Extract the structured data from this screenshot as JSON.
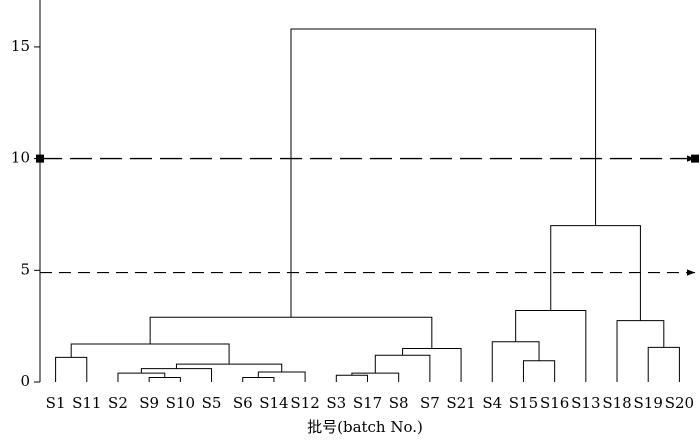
{
  "chart_data": {
    "type": "dendrogram",
    "x_label": "批号(batch No.)",
    "categories": [
      "S1",
      "S11",
      "S2",
      "S9",
      "S10",
      "S5",
      "S6",
      "S14",
      "S12",
      "S3",
      "S17",
      "S8",
      "S7",
      "S21",
      "S4",
      "S15",
      "S16",
      "S13",
      "S18",
      "S19",
      "S20"
    ],
    "merges": [
      {
        "left": 0,
        "right": 1,
        "height": 1.1
      },
      {
        "left": 3,
        "right": 4,
        "height": 0.2
      },
      {
        "left": 2,
        "right": 22,
        "height": 0.4
      },
      {
        "left": 23,
        "right": 5,
        "height": 0.6
      },
      {
        "left": 6,
        "right": 7,
        "height": 0.2
      },
      {
        "left": 25,
        "right": 8,
        "height": 0.45
      },
      {
        "left": 24,
        "right": 26,
        "height": 0.8
      },
      {
        "left": 21,
        "right": 27,
        "height": 1.7
      },
      {
        "left": 9,
        "right": 10,
        "height": 0.3
      },
      {
        "left": 29,
        "right": 11,
        "height": 0.4
      },
      {
        "left": 30,
        "right": 12,
        "height": 1.2
      },
      {
        "left": 31,
        "right": 13,
        "height": 1.5
      },
      {
        "left": 28,
        "right": 32,
        "height": 2.9
      },
      {
        "left": 15,
        "right": 16,
        "height": 0.95
      },
      {
        "left": 14,
        "right": 34,
        "height": 1.8
      },
      {
        "left": 35,
        "right": 17,
        "height": 3.2
      },
      {
        "left": 19,
        "right": 20,
        "height": 1.55
      },
      {
        "left": 18,
        "right": 37,
        "height": 2.75
      },
      {
        "left": 36,
        "right": 38,
        "height": 7.0
      },
      {
        "left": 33,
        "right": 39,
        "height": 15.8
      }
    ],
    "thresholds": [
      10,
      4.9
    ],
    "ylim": [
      0,
      17.1
    ],
    "yticks": [
      0,
      5,
      10,
      15
    ],
    "color": "#000000"
  }
}
